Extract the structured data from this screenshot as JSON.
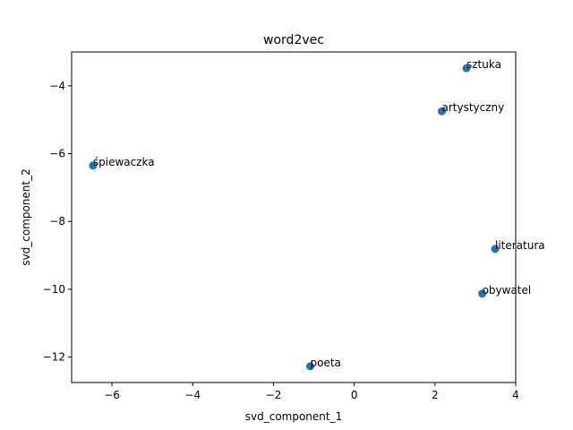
{
  "chart_data": {
    "type": "scatter",
    "title": "word2vec",
    "xlabel": "svd_component_1",
    "ylabel": "svd_component_2",
    "xlim": [
      -7.0,
      4.0
    ],
    "ylim": [
      -12.75,
      -3.0
    ],
    "xticks": [
      -6,
      -4,
      -2,
      0,
      2,
      4
    ],
    "yticks": [
      -12,
      -10,
      -8,
      -6,
      -4
    ],
    "xtick_labels": [
      "−6",
      "−4",
      "−2",
      "0",
      "2",
      "4"
    ],
    "ytick_labels": [
      "−12",
      "−10",
      "−8",
      "−6",
      "−4"
    ],
    "marker_color": "#1f77b4",
    "points": [
      {
        "label": "sztuka",
        "x": 2.78,
        "y": -3.48
      },
      {
        "label": "artystyczny",
        "x": 2.17,
        "y": -4.75
      },
      {
        "label": "śpiewaczka",
        "x": -6.47,
        "y": -6.35
      },
      {
        "label": "literatura",
        "x": 3.49,
        "y": -8.81
      },
      {
        "label": "obywatel",
        "x": 3.17,
        "y": -10.13
      },
      {
        "label": "poeta",
        "x": -1.09,
        "y": -12.27
      }
    ]
  }
}
